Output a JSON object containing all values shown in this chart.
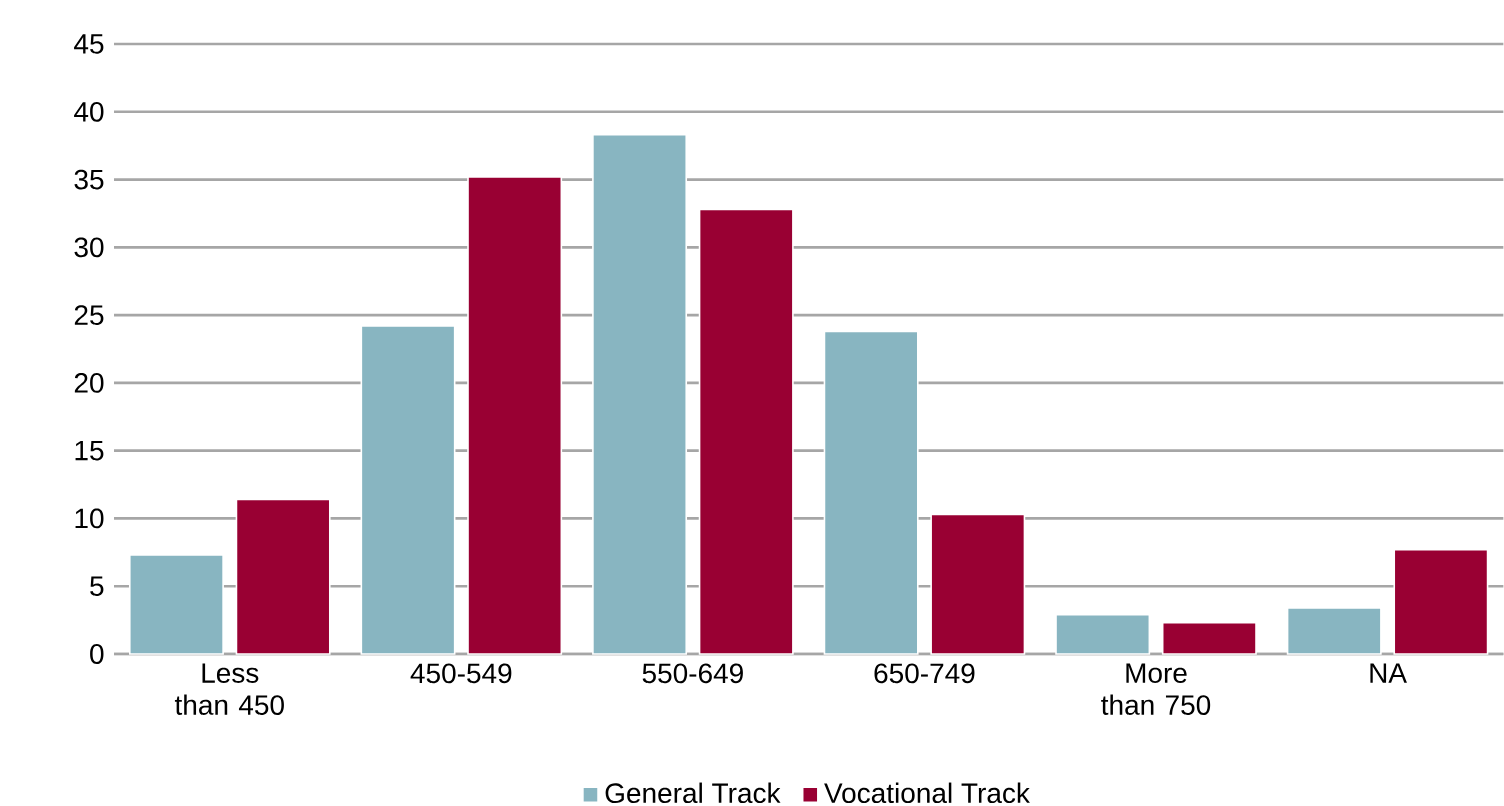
{
  "chart_data": {
    "type": "bar",
    "categories": [
      "Less than 450",
      "450-549",
      "550-649",
      "650-749",
      "More than 750",
      "NA"
    ],
    "series": [
      {
        "name": "General Track",
        "color": "#88b5c1",
        "values": [
          7.3,
          24.2,
          38.3,
          23.8,
          2.9,
          3.4
        ]
      },
      {
        "name": "Vocational Track",
        "color": "#990033",
        "values": [
          11.4,
          35.2,
          32.8,
          10.3,
          2.3,
          7.7
        ]
      }
    ],
    "ylim": [
      0,
      45
    ],
    "yticks": [
      0,
      5,
      10,
      15,
      20,
      25,
      30,
      35,
      40,
      45
    ],
    "grid": "y",
    "legend": "bottom"
  }
}
